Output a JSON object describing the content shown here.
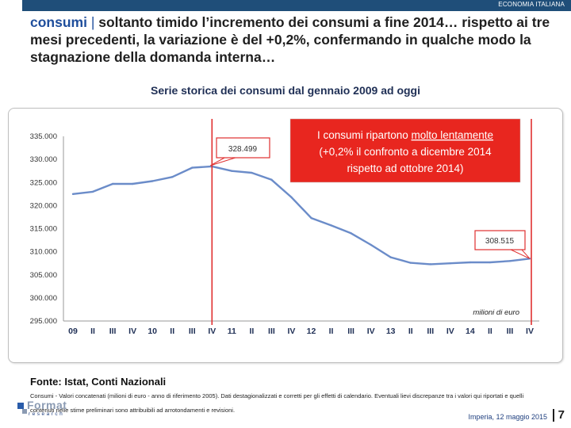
{
  "header": {
    "brand": "ECONOMIA ITALIANA"
  },
  "headline": {
    "keyword": "consumi",
    "separator": " | ",
    "text": "soltanto timido l’incremento dei consumi a fine 2014… rispetto ai tre mesi precedenti, la variazione è del +0,2%, confermando in qualche modo la stagnazione della domanda interna…"
  },
  "subtitle": "Serie storica dei consumi dal gennaio 2009 ad oggi",
  "chart_data": {
    "type": "line",
    "ylim": [
      295000,
      335000
    ],
    "yticks": [
      "295.000",
      "300.000",
      "305.000",
      "310.000",
      "315.000",
      "320.000",
      "325.000",
      "330.000",
      "335.000"
    ],
    "ytick_values": [
      295000,
      300000,
      305000,
      310000,
      315000,
      320000,
      325000,
      330000,
      335000
    ],
    "categories": [
      "09",
      "II",
      "III",
      "IV",
      "10",
      "II",
      "III",
      "IV",
      "11",
      "II",
      "III",
      "IV",
      "12",
      "II",
      "III",
      "IV",
      "13",
      "II",
      "III",
      "IV",
      "14",
      "II",
      "III",
      "IV"
    ],
    "series": [
      {
        "values": [
          322500,
          323000,
          324700,
          324700,
          325300,
          326200,
          328200,
          328499,
          327500,
          327100,
          325600,
          321800,
          317300,
          315700,
          314000,
          311500,
          308800,
          307600,
          307300,
          307500,
          307700,
          307700,
          308000,
          308515
        ],
        "color": "#6b8cc9"
      }
    ],
    "markers": [
      {
        "index": 7,
        "label": "328.499"
      },
      {
        "index": 23,
        "label": "308.515"
      }
    ],
    "callout": {
      "line1_pre": "I consumi ripartono ",
      "line1_underlined": "molto lentamente",
      "line2": "(+0,2% il confronto a dicembre 2014",
      "line3": "rispetto ad ottobre 2014)"
    },
    "unit_label": "milioni di euro",
    "grid": false,
    "colors": {
      "line": "#6b8cc9",
      "marker": "#e03030",
      "callout_bg": "#e8261f",
      "axis": "#9a9a9a"
    }
  },
  "source": "Fonte: Istat, Conti Nazionali",
  "note": "Consumi - Valori concatenati (milioni di euro - anno di riferimento 2005). Dati destagionalizzati e corretti per gli effetti di calendario. Eventuali lievi discrepanze tra i valori qui riportati e quelli contenuti nelle stime preliminari sono attribuibili ad arrotondamenti e revisioni.",
  "logo": {
    "word": "Format",
    "sub": "research"
  },
  "footer": {
    "place_date": "Imperia, 12 maggio 2015",
    "page": "7"
  }
}
